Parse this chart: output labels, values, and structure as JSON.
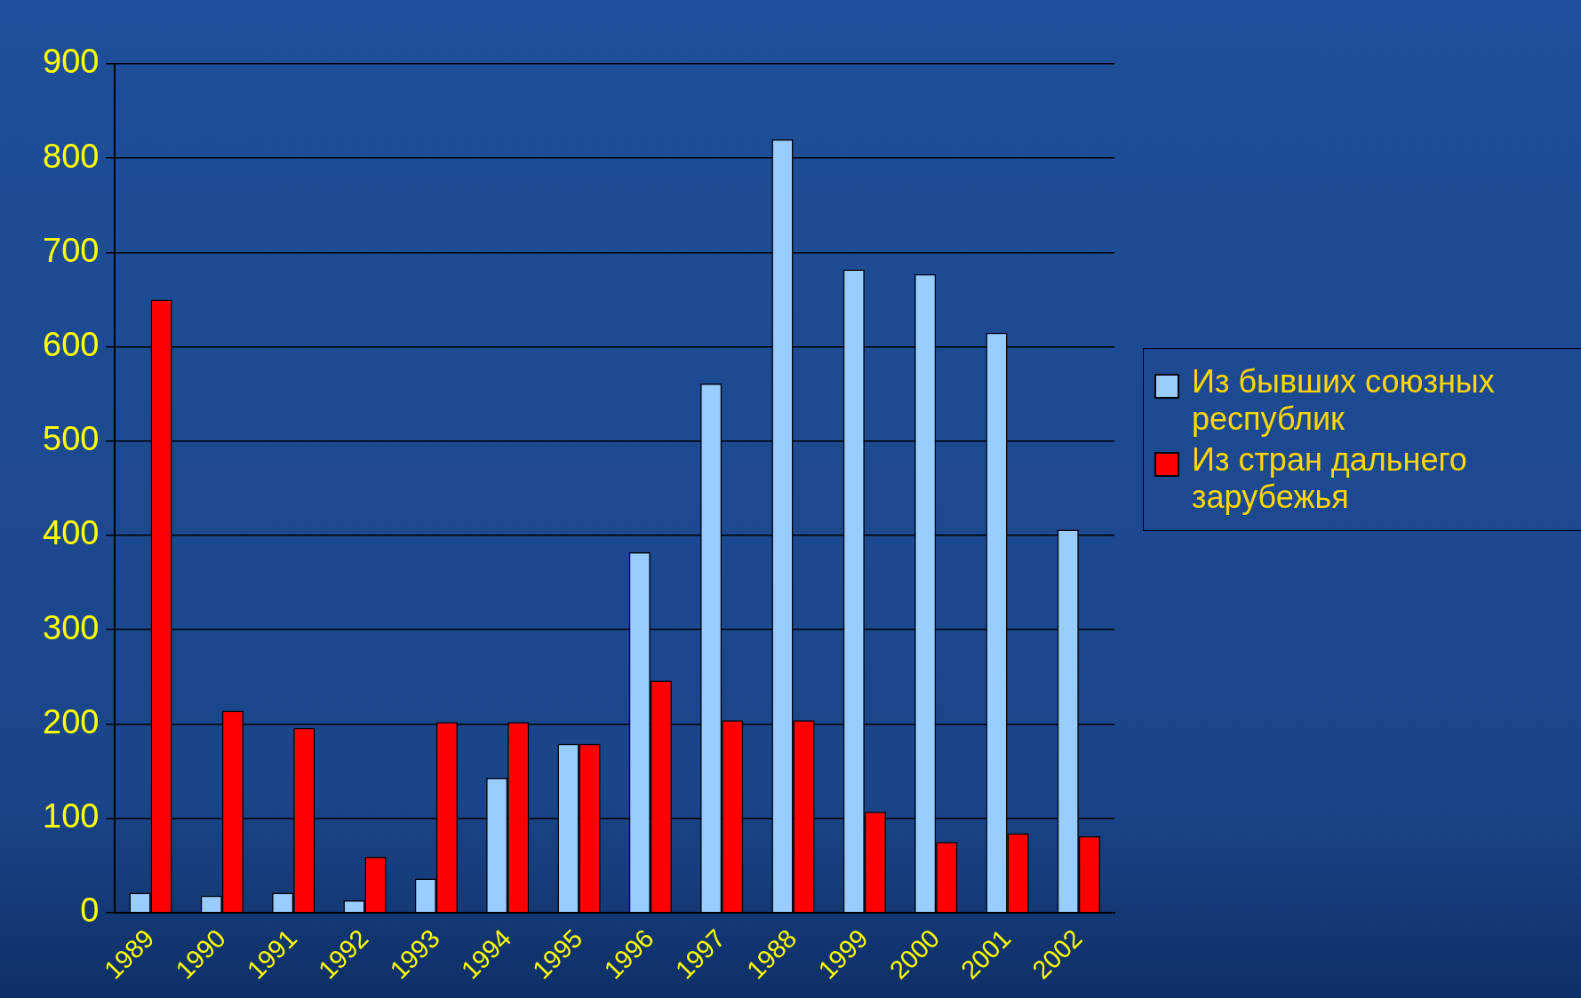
{
  "chart_data": {
    "type": "bar",
    "categories": [
      "1989",
      "1990",
      "1991",
      "1992",
      "1993",
      "1994",
      "1995",
      "1996",
      "1997",
      "1988",
      "1999",
      "2000",
      "2001",
      "2002"
    ],
    "series": [
      {
        "name": "Из бывших союзных республик",
        "color": "#99ccff",
        "values": [
          21,
          18,
          21,
          13,
          36,
          143,
          179,
          382,
          561,
          820,
          682,
          677,
          615,
          406
        ]
      },
      {
        "name": "Из стран дальнего зарубежья",
        "color": "#ff0000",
        "values": [
          650,
          214,
          196,
          59,
          202,
          202,
          179,
          246,
          204,
          204,
          107,
          75,
          84,
          81
        ]
      }
    ],
    "ylim": [
      0,
      900
    ],
    "yticks": [
      0,
      100,
      200,
      300,
      400,
      500,
      600,
      700,
      800,
      900
    ],
    "grid": "y",
    "legend": "right"
  }
}
